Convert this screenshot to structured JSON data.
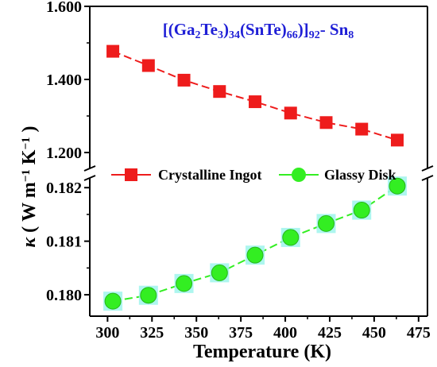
{
  "chart_data": {
    "type": "line",
    "title": "[(Ga₂Te₃)₃₄(SnTe)₆₆)]₉₂- Sn₈",
    "title_parts": [
      {
        "t": "[(Ga",
        "sub": false
      },
      {
        "t": "2",
        "sub": true
      },
      {
        "t": "Te",
        "sub": false
      },
      {
        "t": "3",
        "sub": true
      },
      {
        "t": ")",
        "sub": false
      },
      {
        "t": "34",
        "sub": true
      },
      {
        "t": "(SnTe)",
        "sub": false
      },
      {
        "t": "66",
        "sub": true
      },
      {
        "t": ")]",
        "sub": false
      },
      {
        "t": "92",
        "sub": true
      },
      {
        "t": "- Sn",
        "sub": false
      },
      {
        "t": "8",
        "sub": true
      }
    ],
    "xlabel": "Temperature (K)",
    "ylabel_symbol": "κ",
    "ylabel_unit_parts": [
      {
        "t": " ( W m",
        "sup": false
      },
      {
        "t": "−1",
        "sup": true
      },
      {
        "t": " K",
        "sup": false
      },
      {
        "t": "−1",
        "sup": true
      },
      {
        "t": " )",
        "sup": false
      }
    ],
    "xlim": [
      290,
      480
    ],
    "xticks": [
      300,
      325,
      350,
      375,
      400,
      425,
      450,
      475
    ],
    "broken_y_axis": true,
    "upper_panel": {
      "ylim": [
        1.15,
        1.6
      ],
      "yticks": [
        1.2,
        1.4,
        1.6
      ],
      "ytick_labels": [
        "1.200",
        "1.400",
        "1.600"
      ]
    },
    "lower_panel": {
      "ylim": [
        0.1796,
        0.1823
      ],
      "yticks": [
        0.18,
        0.181,
        0.182
      ],
      "ytick_labels": [
        "0.180",
        "0.181",
        "0.182"
      ]
    },
    "grid": false,
    "legend_position": "middle, between panels",
    "series": [
      {
        "name": "Crystalline Ingot",
        "panel": "upper",
        "marker": "square",
        "color": "#ee1c1c",
        "x": [
          303,
          323,
          343,
          363,
          383,
          403,
          423,
          443,
          463
        ],
        "y": [
          1.477,
          1.438,
          1.398,
          1.367,
          1.339,
          1.308,
          1.282,
          1.264,
          1.234
        ]
      },
      {
        "name": "Glassy Disk",
        "panel": "lower",
        "marker": "circle",
        "color": "#33ee22",
        "halo_color": "#9ff5ec",
        "x": [
          303,
          323,
          343,
          363,
          383,
          403,
          423,
          443,
          463
        ],
        "y": [
          0.17988,
          0.17999,
          0.18021,
          0.18041,
          0.18074,
          0.18107,
          0.18133,
          0.18158,
          0.18203
        ]
      }
    ]
  }
}
